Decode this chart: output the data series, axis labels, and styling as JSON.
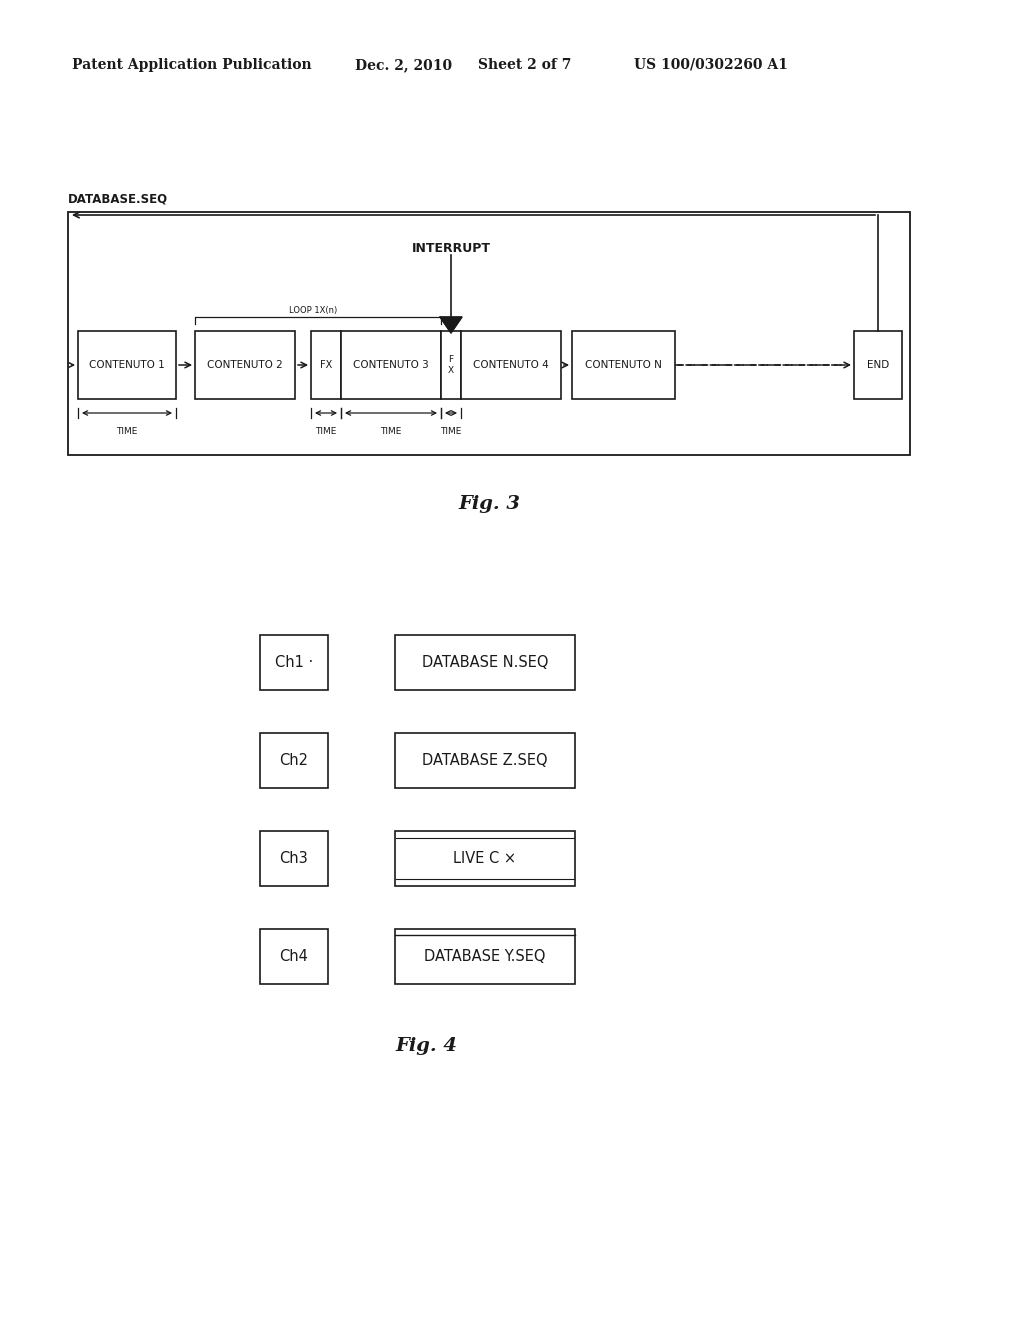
{
  "header_left": "Patent Application Publication",
  "header_date": "Dec. 2, 2010",
  "header_sheet": "Sheet 2 of 7",
  "header_right": "US 100/0302260 A1",
  "fig3_label": "Fig. 3",
  "fig4_label": "Fig. 4",
  "fig3_db_label": "DATABASE.SEQ",
  "fig3_interrupt": "INTERRUPT",
  "fig3_loop": "LOOP 1X(n)",
  "fig4_channels": [
    "Ch1",
    "Ch2",
    "Ch3",
    "Ch4"
  ],
  "fig4_ch1_suffix": " ·",
  "fig4_databases": [
    "DATABASE N.SEQ",
    "DATABASE Z.SEQ",
    "LIVE C",
    "DATABASE Y.SEQ"
  ],
  "fig4_livec_suffix": " ×",
  "bg_color": "#ffffff",
  "line_color": "#1a1a1a"
}
